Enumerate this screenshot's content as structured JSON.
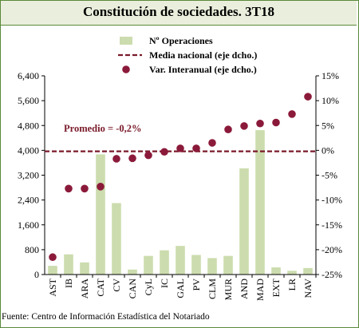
{
  "title": "Constitución de sociedades. 3T18",
  "footer": "Fuente: Centro de Información Estadística del Notariado",
  "annotation": "Promedio =  -0,2%",
  "colors": {
    "bar": "#ccdcae",
    "dot": "#8b1a3a",
    "line": "#7a1a2a",
    "border": "#5a8a3a",
    "title_band": "#e9efdc"
  },
  "chart_data": {
    "type": "bar",
    "categories": [
      "AST",
      "IB",
      "ARA",
      "CAT",
      "CV",
      "CAN",
      "CyL",
      "IC",
      "GAL",
      "PV",
      "CLM",
      "MUR",
      "AND",
      "MAD",
      "EXT",
      "LR",
      "NAV"
    ],
    "left_ticks": [
      "0",
      "800",
      "1,600",
      "2,400",
      "3,200",
      "4,000",
      "4,800",
      "5,600",
      "6,400"
    ],
    "right_ticks": [
      "-25%",
      "-20%",
      "-15%",
      "-10%",
      "-5%",
      "0%",
      "5%",
      "10%",
      "15%"
    ],
    "ylim_left": [
      0,
      6400
    ],
    "ylim_right": [
      -25,
      15
    ],
    "legend_position": "top-right",
    "series": [
      {
        "name": "Nº Operaciones",
        "kind": "bar",
        "axis": "left",
        "values": [
          280,
          650,
          390,
          3870,
          2300,
          160,
          600,
          780,
          920,
          630,
          530,
          600,
          3420,
          4650,
          230,
          120,
          210
        ]
      },
      {
        "name": "Media nacional (eje dcho.)",
        "kind": "line",
        "axis": "right",
        "value": -0.2
      },
      {
        "name": "Var. Interanual (eje dcho.)",
        "kind": "scatter",
        "axis": "right",
        "values": [
          -21.5,
          -7.7,
          -7.7,
          -7.3,
          -1.7,
          -1.6,
          -1.0,
          -0.3,
          0.4,
          0.4,
          1.5,
          4.2,
          4.9,
          5.4,
          5.6,
          7.3,
          10.8
        ]
      }
    ]
  }
}
